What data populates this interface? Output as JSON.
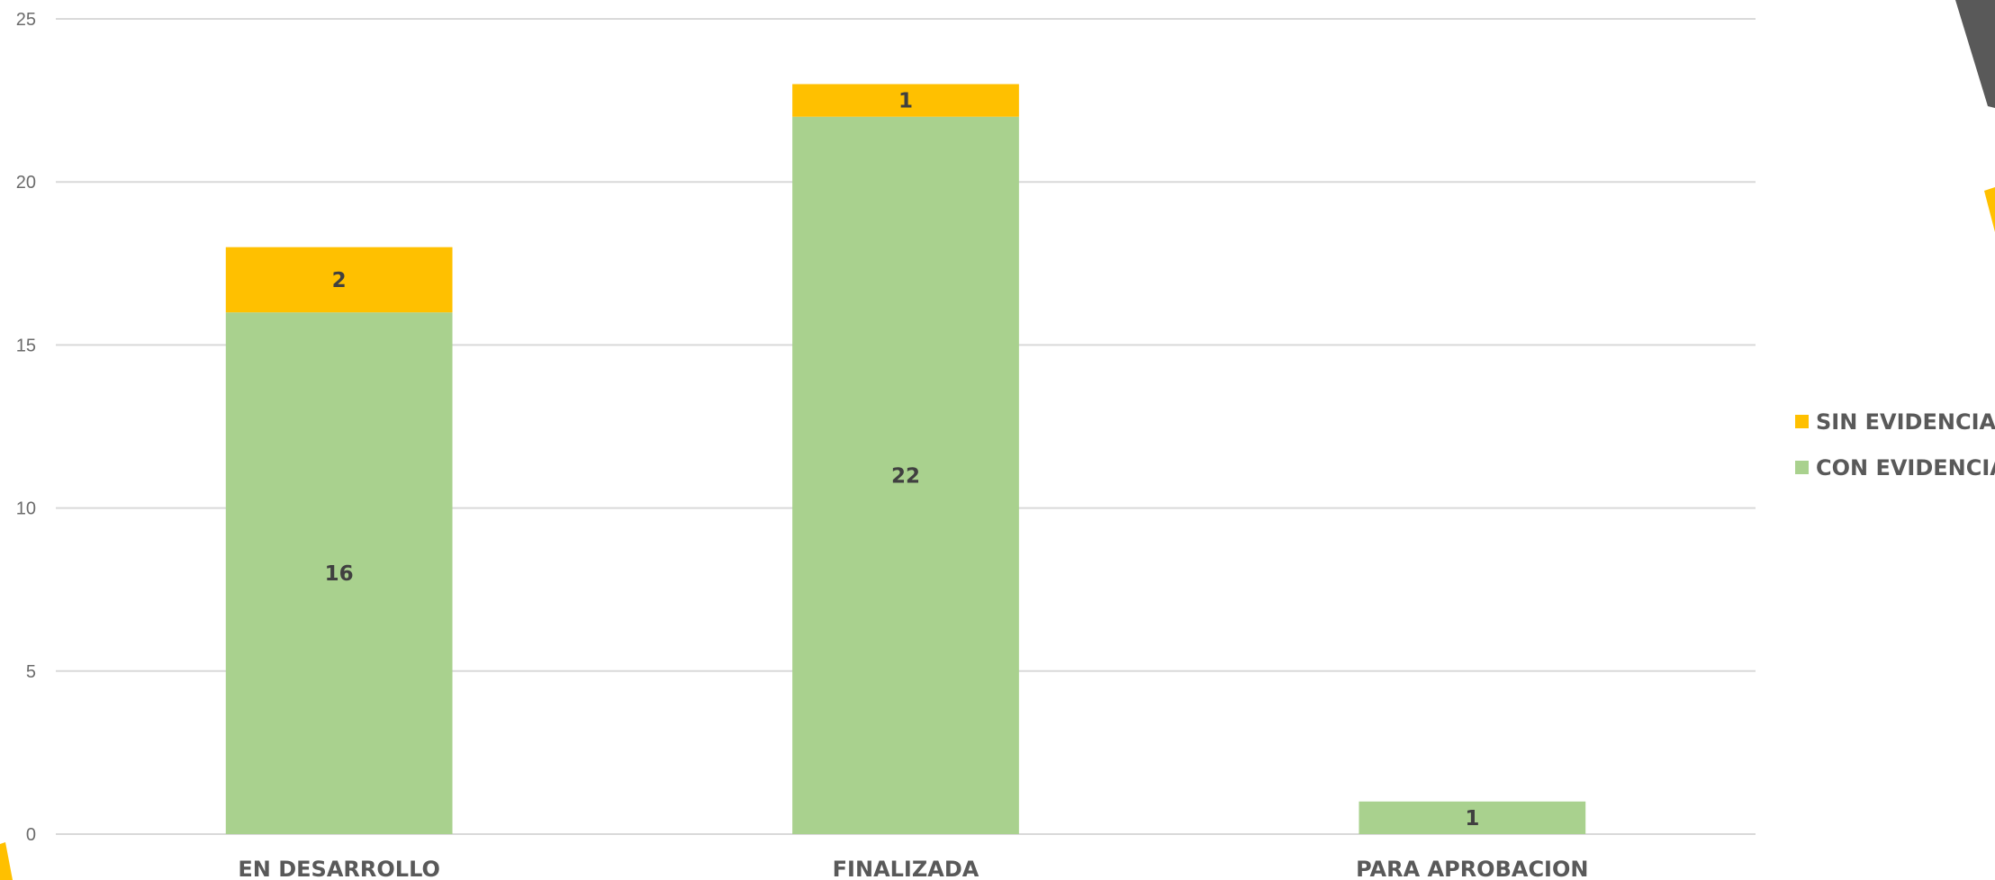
{
  "chart_data": {
    "type": "bar",
    "stacked": true,
    "title": "",
    "xlabel": "",
    "ylabel": "",
    "categories": [
      "EN DESARROLLO",
      "FINALIZADA",
      "PARA APROBACION"
    ],
    "series": [
      {
        "name": "CON EVIDENCIA",
        "values": [
          16,
          22,
          1
        ],
        "color": "#a9d18e"
      },
      {
        "name": "SIN EVIDENCIA",
        "values": [
          2,
          1,
          0
        ],
        "color": "#ffc000"
      }
    ],
    "ylim": [
      0,
      25
    ],
    "yticks": [
      "0",
      "5",
      "10",
      "15",
      "20",
      "25"
    ],
    "grid": true,
    "legend": {
      "position": "right",
      "entries": [
        "SIN EVIDENCIA",
        "CON EVIDENCIA"
      ]
    }
  },
  "decoration": {
    "accent_dark": "#595959",
    "accent_yellow": "#ffc000"
  }
}
